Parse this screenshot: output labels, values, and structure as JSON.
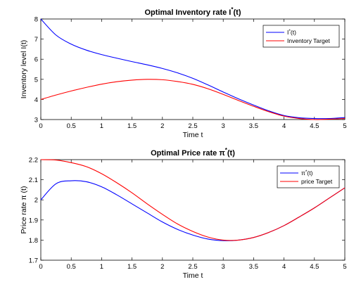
{
  "chart_data": [
    {
      "type": "line",
      "title": "Optimal Inventory rate I",
      "title_sup": "*",
      "title_suffix": "(t)",
      "xlabel": "Time t",
      "ylabel": "Inventory level I(t)",
      "xlim": [
        0,
        5
      ],
      "ylim": [
        3,
        8
      ],
      "xticks": [
        "0",
        "0.5",
        "1",
        "1.5",
        "2",
        "2.5",
        "3",
        "3.5",
        "4",
        "4.5",
        "5"
      ],
      "yticks": [
        "3",
        "4",
        "5",
        "6",
        "7",
        "8"
      ],
      "legend_position": "top-right",
      "grid": false,
      "x": [
        0,
        0.25,
        0.5,
        0.75,
        1,
        1.25,
        1.5,
        1.75,
        2,
        2.25,
        2.5,
        2.75,
        3,
        3.25,
        3.5,
        3.75,
        4,
        4.25,
        4.5,
        4.75,
        5
      ],
      "series": [
        {
          "name": "I",
          "name_sup": "*",
          "name_suffix": "(t)",
          "color": "#0000ff",
          "values": [
            8.0,
            7.2,
            6.75,
            6.45,
            6.23,
            6.05,
            5.88,
            5.72,
            5.54,
            5.32,
            5.05,
            4.72,
            4.37,
            4.03,
            3.72,
            3.43,
            3.2,
            3.09,
            3.05,
            3.05,
            3.1
          ]
        },
        {
          "name": "Inventory Target",
          "color": "#ff0000",
          "values": [
            4.0,
            4.22,
            4.42,
            4.6,
            4.76,
            4.88,
            4.96,
            5.0,
            4.98,
            4.89,
            4.75,
            4.53,
            4.25,
            3.95,
            3.66,
            3.39,
            3.17,
            3.05,
            3.0,
            3.02,
            3.05
          ]
        }
      ]
    },
    {
      "type": "line",
      "title": "Optimal Price rate π",
      "title_sup": "*",
      "title_suffix": "(t)",
      "xlabel": "Time t",
      "ylabel": "Price rate π (t)",
      "xlim": [
        0,
        5
      ],
      "ylim": [
        1.7,
        2.2
      ],
      "xticks": [
        "0",
        "0.5",
        "1",
        "1.5",
        "2",
        "2.5",
        "3",
        "3.5",
        "4",
        "4.5",
        "5"
      ],
      "yticks": [
        "1.7",
        "1.8",
        "1.9",
        "2",
        "2.1",
        "2.2"
      ],
      "legend_position": "top-right",
      "grid": false,
      "x": [
        0,
        0.25,
        0.5,
        0.75,
        1,
        1.25,
        1.5,
        1.75,
        2,
        2.25,
        2.5,
        2.75,
        3,
        3.25,
        3.5,
        3.75,
        4,
        4.25,
        4.5,
        4.75,
        5
      ],
      "series": [
        {
          "name": "π",
          "name_sup": "*",
          "name_suffix": "(t)",
          "color": "#0000ff",
          "values": [
            2.0,
            2.08,
            2.095,
            2.09,
            2.065,
            2.025,
            1.98,
            1.935,
            1.89,
            1.853,
            1.825,
            1.805,
            1.797,
            1.8,
            1.813,
            1.838,
            1.872,
            1.915,
            1.96,
            2.01,
            2.06
          ]
        },
        {
          "name": "price Target",
          "color": "#ff0000",
          "values": [
            2.2,
            2.198,
            2.185,
            2.165,
            2.13,
            2.085,
            2.035,
            1.98,
            1.928,
            1.88,
            1.843,
            1.815,
            1.8,
            1.8,
            1.813,
            1.838,
            1.872,
            1.915,
            1.96,
            2.01,
            2.06
          ]
        }
      ]
    }
  ]
}
